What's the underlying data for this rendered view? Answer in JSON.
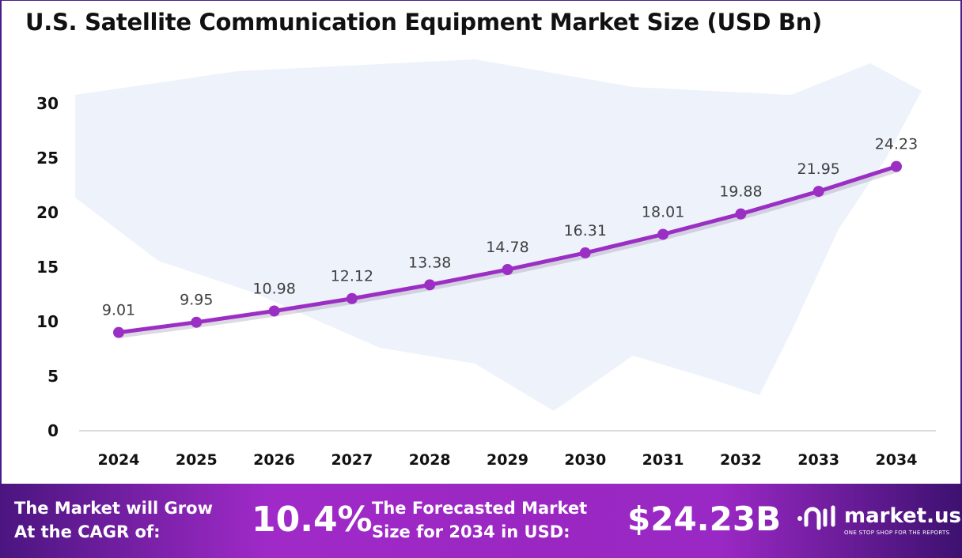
{
  "chart_data": {
    "type": "line",
    "title": "U.S. Satellite Communication Equipment Market Size (USD Bn)",
    "categories": [
      "2024",
      "2025",
      "2026",
      "2027",
      "2028",
      "2029",
      "2030",
      "2031",
      "2032",
      "2033",
      "2034"
    ],
    "values": [
      9.01,
      9.95,
      10.98,
      12.12,
      13.38,
      14.78,
      16.31,
      18.01,
      19.88,
      21.95,
      24.23
    ],
    "data_labels": [
      "9.01",
      "9.95",
      "10.98",
      "12.12",
      "13.38",
      "14.78",
      "16.31",
      "18.01",
      "19.88",
      "21.95",
      "24.23"
    ],
    "ylim": [
      0,
      30
    ],
    "yticks": [
      "0",
      "5",
      "10",
      "15",
      "20",
      "25",
      "30"
    ],
    "grid": false,
    "line_color": "#9b2fc4",
    "xlabel": "",
    "ylabel": ""
  },
  "footer": {
    "cagr_text_1": "The Market will Grow",
    "cagr_text_2": "At the CAGR of:",
    "cagr_value": "10.4%",
    "forecast_text_1": "The Forecasted Market",
    "forecast_text_2": "Size for 2034 in USD:",
    "forecast_value": "$24.23B",
    "logo_name": "market.us",
    "logo_tagline": "ONE STOP SHOP FOR THE REPORTS"
  }
}
